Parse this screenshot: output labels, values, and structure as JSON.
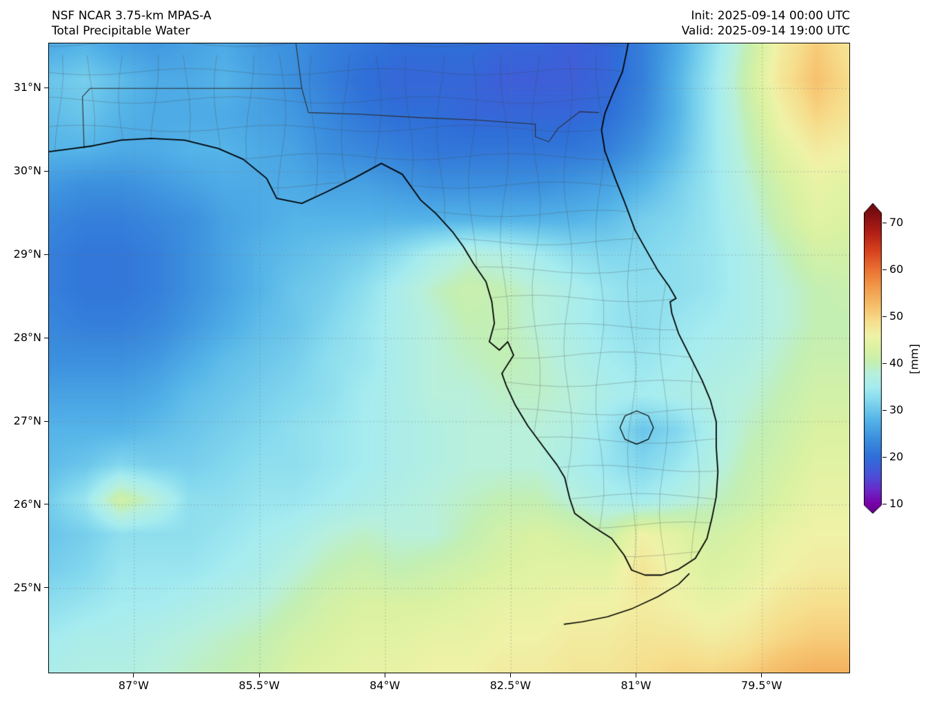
{
  "header": {
    "model_line": "NSF NCAR 3.75-km MPAS-A",
    "field_line": "Total Precipitable Water",
    "init_line": "Init: 2025-09-14 00:00 UTC",
    "valid_line": "Valid: 2025-09-14 19:00 UTC"
  },
  "axes": {
    "lat_ticks": [
      {
        "label": "31°N",
        "value": 31
      },
      {
        "label": "30°N",
        "value": 30
      },
      {
        "label": "29°N",
        "value": 29
      },
      {
        "label": "28°N",
        "value": 28
      },
      {
        "label": "27°N",
        "value": 27
      },
      {
        "label": "26°N",
        "value": 26
      },
      {
        "label": "25°N",
        "value": 25
      }
    ],
    "lon_ticks": [
      {
        "label": "87°W",
        "value": -87
      },
      {
        "label": "85.5°W",
        "value": -85.5
      },
      {
        "label": "84°W",
        "value": -84
      },
      {
        "label": "82.5°W",
        "value": -82.5
      },
      {
        "label": "81°W",
        "value": -81
      },
      {
        "label": "79.5°W",
        "value": -79.5
      }
    ]
  },
  "colorbar": {
    "label": "[mm]",
    "ticks": [
      70,
      60,
      50,
      40,
      30,
      20,
      10
    ],
    "vmin": 6,
    "vmax": 75,
    "stops": [
      [
        6,
        "#3f0060"
      ],
      [
        10,
        "#7a00a8"
      ],
      [
        13,
        "#6a2ac8"
      ],
      [
        16,
        "#4d4fd8"
      ],
      [
        20,
        "#2f6fd8"
      ],
      [
        24,
        "#3c90de"
      ],
      [
        28,
        "#55b4e8"
      ],
      [
        32,
        "#83d8ee"
      ],
      [
        35,
        "#a6ecf0"
      ],
      [
        38,
        "#b8f0dc"
      ],
      [
        40,
        "#c3efb4"
      ],
      [
        43,
        "#daf2a2"
      ],
      [
        46,
        "#f0f2a8"
      ],
      [
        49,
        "#f6df8e"
      ],
      [
        52,
        "#f6c26e"
      ],
      [
        56,
        "#f29e4e"
      ],
      [
        60,
        "#ea7233"
      ],
      [
        64,
        "#d8431f"
      ],
      [
        68,
        "#b01f16"
      ],
      [
        72,
        "#7f0e12"
      ],
      [
        75,
        "#5f070c"
      ]
    ]
  },
  "chart_data": {
    "type": "heatmap",
    "title": "Total Precipitable Water",
    "model": "NSF NCAR 3.75-km MPAS-A",
    "units": "mm",
    "init_time": "2025-09-14 00:00 UTC",
    "valid_time": "2025-09-14 19:00 UTC",
    "lon_range": [
      -88.02,
      -78.46
    ],
    "lat_range": [
      23.99,
      31.54
    ],
    "colorbar_range": [
      10,
      70
    ],
    "grid": {
      "ncols": 24,
      "nrows": 19,
      "note": "Total precipitable water in mm, rows ordered north to south across lat_range, cols west to east across lon_range",
      "values": [
        [
          27,
          28,
          26,
          25,
          26,
          27,
          25,
          24,
          22,
          21,
          20,
          20,
          20,
          19,
          19,
          18,
          19,
          22,
          27,
          33,
          40,
          47,
          51,
          48
        ],
        [
          30,
          31,
          29,
          27,
          27,
          28,
          26,
          24,
          22,
          20,
          19,
          19,
          19,
          18,
          18,
          18,
          19,
          22,
          28,
          34,
          41,
          48,
          52,
          49
        ],
        [
          29,
          30,
          28,
          27,
          27,
          27,
          26,
          25,
          23,
          21,
          20,
          20,
          19,
          19,
          19,
          19,
          20,
          23,
          28,
          34,
          40,
          46,
          50,
          48
        ],
        [
          28,
          28,
          27,
          27,
          28,
          28,
          27,
          26,
          24,
          23,
          22,
          21,
          21,
          21,
          21,
          21,
          22,
          25,
          29,
          34,
          39,
          44,
          47,
          46
        ],
        [
          25,
          24,
          24,
          25,
          26,
          27,
          27,
          27,
          26,
          26,
          25,
          24,
          24,
          24,
          24,
          25,
          26,
          28,
          31,
          34,
          38,
          42,
          45,
          44
        ],
        [
          23,
          22,
          22,
          23,
          24,
          26,
          27,
          28,
          28,
          28,
          28,
          28,
          28,
          28,
          28,
          28,
          29,
          31,
          32,
          34,
          37,
          41,
          44,
          43
        ],
        [
          22,
          21,
          21,
          22,
          24,
          26,
          28,
          29,
          30,
          31,
          33,
          36,
          38,
          37,
          35,
          33,
          32,
          32,
          33,
          34,
          36,
          39,
          42,
          42
        ],
        [
          22,
          21,
          21,
          22,
          24,
          26,
          28,
          30,
          31,
          33,
          36,
          39,
          41,
          40,
          38,
          36,
          34,
          33,
          33,
          34,
          36,
          38,
          40,
          41
        ],
        [
          23,
          22,
          22,
          23,
          25,
          27,
          29,
          30,
          32,
          34,
          36,
          38,
          40,
          40,
          38,
          36,
          34,
          33,
          34,
          35,
          36,
          38,
          40,
          40
        ],
        [
          24,
          24,
          24,
          25,
          27,
          29,
          30,
          31,
          33,
          34,
          36,
          38,
          39,
          40,
          39,
          37,
          35,
          34,
          35,
          36,
          37,
          39,
          41,
          41
        ],
        [
          26,
          26,
          26,
          27,
          29,
          30,
          31,
          32,
          33,
          35,
          36,
          38,
          38,
          39,
          39,
          38,
          36,
          35,
          36,
          37,
          38,
          40,
          42,
          42
        ],
        [
          28,
          28,
          28,
          29,
          30,
          31,
          32,
          33,
          34,
          35,
          36,
          37,
          38,
          38,
          38,
          37,
          34,
          30,
          32,
          36,
          39,
          41,
          43,
          43
        ],
        [
          29,
          30,
          32,
          31,
          31,
          32,
          33,
          33,
          34,
          35,
          36,
          37,
          38,
          38,
          38,
          36,
          34,
          32,
          34,
          37,
          40,
          42,
          44,
          44
        ],
        [
          31,
          34,
          42,
          38,
          33,
          33,
          34,
          34,
          35,
          36,
          37,
          38,
          39,
          40,
          40,
          38,
          36,
          35,
          37,
          39,
          41,
          43,
          45,
          45
        ],
        [
          30,
          31,
          33,
          33,
          33,
          34,
          35,
          36,
          38,
          39,
          38,
          38,
          40,
          42,
          43,
          42,
          41,
          46,
          44,
          42,
          43,
          45,
          46,
          46
        ],
        [
          31,
          32,
          34,
          34,
          34,
          35,
          36,
          38,
          40,
          41,
          40,
          41,
          42,
          43,
          44,
          44,
          44,
          48,
          45,
          43,
          44,
          46,
          47,
          47
        ],
        [
          33,
          34,
          35,
          35,
          36,
          37,
          38,
          40,
          42,
          43,
          43,
          43,
          44,
          45,
          45,
          46,
          46,
          47,
          46,
          45,
          46,
          48,
          49,
          49
        ],
        [
          35,
          36,
          36,
          37,
          38,
          39,
          40,
          42,
          43,
          44,
          44,
          45,
          45,
          46,
          46,
          47,
          47,
          48,
          48,
          47,
          48,
          50,
          51,
          51
        ],
        [
          36,
          37,
          37,
          38,
          39,
          40,
          41,
          43,
          44,
          45,
          45,
          46,
          46,
          47,
          47,
          48,
          48,
          49,
          50,
          50,
          51,
          53,
          54,
          54
        ]
      ]
    },
    "geo": {
      "coastline": [
        [
          -88.02,
          30.24
        ],
        [
          -87.8,
          30.27
        ],
        [
          -87.5,
          30.31
        ],
        [
          -87.16,
          30.38
        ],
        [
          -86.8,
          30.4
        ],
        [
          -86.4,
          30.38
        ],
        [
          -86.0,
          30.28
        ],
        [
          -85.7,
          30.15
        ],
        [
          -85.42,
          29.92
        ],
        [
          -85.3,
          29.68
        ],
        [
          -85.0,
          29.62
        ],
        [
          -84.7,
          29.76
        ],
        [
          -84.38,
          29.92
        ],
        [
          -84.05,
          30.1
        ],
        [
          -83.8,
          29.97
        ],
        [
          -83.58,
          29.66
        ],
        [
          -83.4,
          29.5
        ],
        [
          -83.2,
          29.28
        ],
        [
          -83.07,
          29.1
        ],
        [
          -82.95,
          28.9
        ],
        [
          -82.8,
          28.68
        ],
        [
          -82.73,
          28.44
        ],
        [
          -82.7,
          28.18
        ],
        [
          -82.76,
          27.96
        ],
        [
          -82.64,
          27.86
        ],
        [
          -82.54,
          27.96
        ],
        [
          -82.47,
          27.8
        ],
        [
          -82.61,
          27.58
        ],
        [
          -82.56,
          27.44
        ],
        [
          -82.45,
          27.2
        ],
        [
          -82.3,
          26.95
        ],
        [
          -82.1,
          26.68
        ],
        [
          -81.95,
          26.48
        ],
        [
          -81.86,
          26.33
        ],
        [
          -81.8,
          26.08
        ],
        [
          -81.74,
          25.9
        ],
        [
          -81.55,
          25.76
        ],
        [
          -81.3,
          25.6
        ],
        [
          -81.15,
          25.4
        ],
        [
          -81.06,
          25.22
        ],
        [
          -80.9,
          25.16
        ],
        [
          -80.7,
          25.16
        ],
        [
          -80.5,
          25.23
        ],
        [
          -80.3,
          25.36
        ],
        [
          -80.16,
          25.6
        ],
        [
          -80.1,
          25.85
        ],
        [
          -80.05,
          26.1
        ],
        [
          -80.03,
          26.4
        ],
        [
          -80.05,
          26.7
        ],
        [
          -80.05,
          27.0
        ],
        [
          -80.12,
          27.26
        ],
        [
          -80.22,
          27.5
        ],
        [
          -80.35,
          27.76
        ],
        [
          -80.5,
          28.06
        ],
        [
          -80.58,
          28.3
        ],
        [
          -80.6,
          28.44
        ],
        [
          -80.53,
          28.48
        ],
        [
          -80.61,
          28.62
        ],
        [
          -80.75,
          28.82
        ],
        [
          -80.88,
          29.05
        ],
        [
          -81.02,
          29.3
        ],
        [
          -81.15,
          29.65
        ],
        [
          -81.25,
          29.9
        ],
        [
          -81.38,
          30.25
        ],
        [
          -81.42,
          30.5
        ],
        [
          -81.38,
          30.7
        ],
        [
          -81.28,
          30.95
        ],
        [
          -81.17,
          31.2
        ],
        [
          -81.12,
          31.44
        ],
        [
          -81.1,
          31.55
        ]
      ],
      "florida_keys": [
        [
          -80.37,
          25.18
        ],
        [
          -80.5,
          25.05
        ],
        [
          -80.75,
          24.9
        ],
        [
          -81.05,
          24.76
        ],
        [
          -81.35,
          24.66
        ],
        [
          -81.65,
          24.6
        ],
        [
          -81.87,
          24.57
        ]
      ],
      "lake_okeechobee": [
        [
          -81.2,
          26.93
        ],
        [
          -81.14,
          27.07
        ],
        [
          -81.0,
          27.13
        ],
        [
          -80.86,
          27.07
        ],
        [
          -80.8,
          26.93
        ],
        [
          -80.86,
          26.79
        ],
        [
          -81.0,
          26.73
        ],
        [
          -81.14,
          26.79
        ],
        [
          -81.2,
          26.93
        ]
      ],
      "state_borders": [
        [
          [
            -87.6,
            30.28
          ],
          [
            -87.62,
            30.9
          ],
          [
            -87.53,
            31.0
          ],
          [
            -85.0,
            31.0
          ],
          [
            -85.07,
            31.54
          ]
        ],
        [
          [
            -85.0,
            31.0
          ],
          [
            -84.92,
            30.71
          ],
          [
            -84.3,
            30.69
          ],
          [
            -83.6,
            30.65
          ],
          [
            -82.9,
            30.62
          ],
          [
            -82.21,
            30.57
          ],
          [
            -82.21,
            30.42
          ],
          [
            -82.05,
            30.36
          ],
          [
            -81.94,
            30.52
          ],
          [
            -81.68,
            30.72
          ],
          [
            -81.45,
            30.71
          ]
        ]
      ],
      "county_mesh": {
        "lon_start": -87.9,
        "lon_end": -80.05,
        "lon_step": 0.38,
        "lat_min": 24.4,
        "lat_max": 31.54,
        "lat_step": 0.34
      }
    }
  }
}
